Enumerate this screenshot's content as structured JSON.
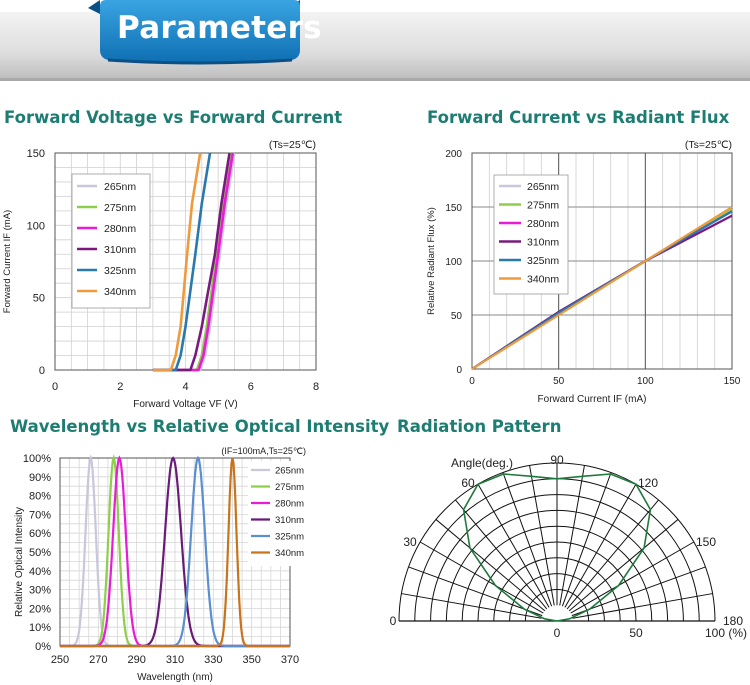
{
  "header": {
    "title": "Parameters"
  },
  "sections": [
    {
      "title": "Forward Voltage vs Forward Current"
    },
    {
      "title": "Forward Current vs Radiant Flux"
    },
    {
      "title": "Wavelength vs Relative Optical Intensity"
    },
    {
      "title": "Radiation Pattern"
    }
  ],
  "colors": {
    "section_title": "#1d7d72",
    "banner_blue": "#1a86c9",
    "265nm": "#c9c7dc",
    "275nm": "#8fce4c",
    "280nm": "#e81bd6",
    "310nm": "#7a1a80",
    "325nm": "#2a79ad",
    "340nm": "#ef9a3c",
    "310nm_spectrum": "#6a1b78",
    "325nm_spectrum": "#5b8fd0",
    "340nm_spectrum": "#c8741c",
    "pattern": "#1e7a3c"
  },
  "chart_data": [
    {
      "type": "line",
      "annotation": "(Ts=25℃)",
      "xlabel": "Forward Voltage VF (V)",
      "ylabel": "Forward Current IF (mA)",
      "xlim": [
        0,
        8
      ],
      "ylim": [
        0,
        150
      ],
      "xticks": [
        0,
        2,
        4,
        6,
        8
      ],
      "yticks": [
        0,
        50,
        100,
        150
      ],
      "grid": true,
      "legend_position": "top-left",
      "series": [
        {
          "name": "265nm",
          "x": [
            4.45,
            4.6,
            4.75,
            4.9,
            5.05,
            5.25,
            5.5
          ],
          "y": [
            0,
            10,
            30,
            55,
            80,
            115,
            150
          ]
        },
        {
          "name": "275nm",
          "x": [
            4.35,
            4.5,
            4.65,
            4.8,
            4.95,
            5.15,
            5.4
          ],
          "y": [
            0,
            10,
            30,
            55,
            80,
            115,
            150
          ]
        },
        {
          "name": "280nm",
          "x": [
            4.4,
            4.55,
            4.7,
            4.85,
            5.0,
            5.2,
            5.45
          ],
          "y": [
            0,
            10,
            30,
            55,
            80,
            115,
            150
          ]
        },
        {
          "name": "310nm",
          "x": [
            4.15,
            4.3,
            4.5,
            4.7,
            4.9,
            5.1,
            5.35
          ],
          "y": [
            0,
            10,
            30,
            55,
            80,
            115,
            150
          ]
        },
        {
          "name": "325nm",
          "x": [
            3.7,
            3.85,
            4.0,
            4.15,
            4.3,
            4.5,
            4.75
          ],
          "y": [
            0,
            10,
            30,
            55,
            80,
            115,
            150
          ]
        },
        {
          "name": "340nm",
          "x": [
            3.55,
            3.7,
            3.85,
            3.95,
            4.05,
            4.2,
            4.45
          ],
          "y": [
            0,
            10,
            30,
            55,
            80,
            115,
            150
          ]
        }
      ]
    },
    {
      "type": "line",
      "annotation": "(Ts=25℃)",
      "xlabel": "Forward Current IF (mA)",
      "ylabel": "Relative Radiant Flux (%)",
      "xlim": [
        0,
        150
      ],
      "ylim": [
        0,
        200
      ],
      "xticks": [
        0,
        50,
        100,
        150
      ],
      "yticks": [
        0,
        50,
        100,
        150,
        200
      ],
      "grid": true,
      "legend_position": "top-left",
      "series": [
        {
          "name": "265nm",
          "x": [
            0,
            50,
            100,
            150
          ],
          "y": [
            0,
            52,
            100,
            146
          ]
        },
        {
          "name": "275nm",
          "x": [
            0,
            50,
            100,
            150
          ],
          "y": [
            0,
            51,
            100,
            148
          ]
        },
        {
          "name": "280nm",
          "x": [
            0,
            50,
            100,
            150
          ],
          "y": [
            0,
            52,
            100,
            146
          ]
        },
        {
          "name": "310nm",
          "x": [
            0,
            50,
            100,
            150
          ],
          "y": [
            0,
            53,
            100,
            142
          ]
        },
        {
          "name": "325nm",
          "x": [
            0,
            50,
            100,
            150
          ],
          "y": [
            0,
            52,
            100,
            146
          ]
        },
        {
          "name": "340nm",
          "x": [
            0,
            50,
            100,
            150
          ],
          "y": [
            0,
            50,
            100,
            150
          ]
        }
      ]
    },
    {
      "type": "line",
      "annotation": "(IF=100mA,Ts=25℃)",
      "xlabel": "Wavelength (nm)",
      "ylabel": "Relative Optical Intensity",
      "xlim": [
        250,
        370
      ],
      "ylim": [
        0,
        100
      ],
      "xticks": [
        250,
        270,
        290,
        310,
        330,
        350,
        370
      ],
      "yticks": [
        "0%",
        "10%",
        "20%",
        "30%",
        "40%",
        "50%",
        "60%",
        "70%",
        "80%",
        "90%",
        "100%"
      ],
      "grid": true,
      "legend_position": "top-right",
      "series": [
        {
          "name": "265nm",
          "peak": 266,
          "width": 9
        },
        {
          "name": "275nm",
          "peak": 278,
          "width": 9
        },
        {
          "name": "280nm",
          "peak": 281,
          "width": 11
        },
        {
          "name": "310nm",
          "peak": 309,
          "width": 14
        },
        {
          "name": "325nm",
          "peak": 322,
          "width": 12
        },
        {
          "name": "340nm",
          "peak": 340,
          "width": 7
        }
      ]
    },
    {
      "type": "polar",
      "angle_label": "Angle(deg.)",
      "angle_ticks": [
        "0",
        "30",
        "60",
        "90",
        "120",
        "150",
        "180"
      ],
      "radial_ticks": [
        "0",
        "50",
        "100 (%)"
      ],
      "series": [
        {
          "name": "",
          "angles": [
            0,
            10,
            20,
            30,
            40,
            50,
            60,
            70,
            80,
            90,
            100,
            110,
            120,
            130,
            140,
            150,
            160,
            170,
            180
          ],
          "values": [
            0,
            8,
            22,
            45,
            72,
            92,
            100,
            99,
            93,
            90,
            93,
            99,
            100,
            92,
            72,
            45,
            22,
            8,
            0
          ]
        }
      ]
    }
  ]
}
